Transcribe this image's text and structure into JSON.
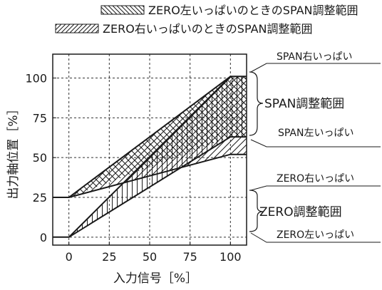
{
  "legend": [
    {
      "pattern": "backslash",
      "label": "ZERO左いっぱいのときのSPAN調整範囲"
    },
    {
      "pattern": "slash",
      "label": "ZERO右いっぱいのときのSPAN調整範囲"
    }
  ],
  "axes": {
    "xlabel": "入力信号［%］",
    "ylabel": "出力軸位置［%］",
    "x_ticks": [
      "0",
      "25",
      "50",
      "75",
      "100"
    ],
    "y_ticks": [
      "0",
      "25",
      "50",
      "75",
      "100"
    ]
  },
  "annotations": {
    "span_right": "SPAN右いっぱい",
    "span_range": "SPAN調整範囲",
    "span_left": "SPAN左いっぱい",
    "zero_right": "ZERO右いっぱい",
    "zero_range": "ZERO調整範囲",
    "zero_left": "ZERO左いっぱい"
  },
  "diagram_values": {
    "input_range": [
      -10,
      110
    ],
    "output_range": [
      -5,
      115
    ],
    "zero_left_output": 0,
    "zero_right_output": 25,
    "span_left_output_at_100": 63,
    "span_right_output_at_100": 101,
    "span_left_from_zero_right_at_100": 52
  },
  "colors": {
    "line": "#1a1a1a",
    "grid": "#333333",
    "background": "#ffffff"
  }
}
